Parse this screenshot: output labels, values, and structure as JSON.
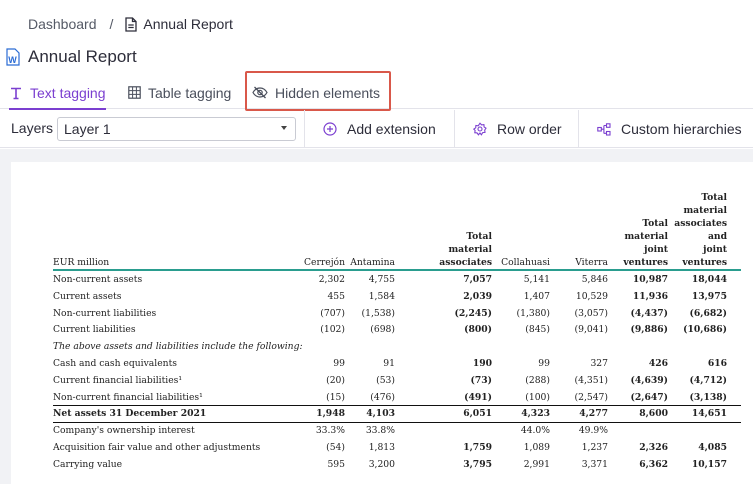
{
  "breadcrumb": {
    "root": "Dashboard",
    "separator": "/",
    "current": "Annual Report"
  },
  "page_title": "Annual Report",
  "tabs": [
    {
      "label": "Text tagging",
      "icon": "text-t-icon",
      "active": true
    },
    {
      "label": "Table tagging",
      "icon": "table-grid-icon",
      "active": false
    },
    {
      "label": "Hidden elements",
      "icon": "eye-slash-icon",
      "active": false
    }
  ],
  "toolbar": {
    "layers_label": "Layers",
    "layer_value": "Layer 1",
    "add_extension": "Add extension",
    "row_order": "Row order",
    "custom_hierarchies": "Custom hierarchies"
  },
  "colors": {
    "accent": "#7b3fd0",
    "highlight_box": "#d9584a",
    "teal_rule": "#2a9d8f"
  },
  "table": {
    "unit_label": "EUR million",
    "columns": [
      {
        "label": "Cerrejón",
        "bold": false
      },
      {
        "label": "Antamina",
        "bold": false
      },
      {
        "label": "Total material associates",
        "lines": [
          "Total",
          "material",
          "associates"
        ],
        "bold": true
      },
      {
        "label": "Collahuasi",
        "bold": false
      },
      {
        "label": "Viterra",
        "bold": false
      },
      {
        "label": "Total material joint ventures",
        "lines": [
          "Total",
          "material",
          "joint",
          "ventures"
        ],
        "bold": true
      },
      {
        "label": "Total material associates and joint ventures",
        "lines": [
          "Total",
          "material",
          "associates",
          "and",
          "joint",
          "ventures"
        ],
        "bold": true
      }
    ],
    "rows": [
      {
        "label": "Non-current assets",
        "values": [
          "2,302",
          "4,755",
          "7,057",
          "5,141",
          "5,846",
          "10,987",
          "18,044"
        ]
      },
      {
        "label": "Current assets",
        "values": [
          "455",
          "1,584",
          "2,039",
          "1,407",
          "10,529",
          "11,936",
          "13,975"
        ]
      },
      {
        "label": "Non-current liabilities",
        "values": [
          "(707)",
          "(1,538)",
          "(2,245)",
          "(1,380)",
          "(3,057)",
          "(4,437)",
          "(6,682)"
        ]
      },
      {
        "label": "Current liabilities",
        "values": [
          "(102)",
          "(698)",
          "(800)",
          "(845)",
          "(9,041)",
          "(9,886)",
          "(10,686)"
        ]
      },
      {
        "label": "The above assets and liabilities include the following:",
        "italic": true,
        "values": []
      },
      {
        "label": "Cash and cash equivalents",
        "values": [
          "99",
          "91",
          "190",
          "99",
          "327",
          "426",
          "616"
        ]
      },
      {
        "label": "Current financial liabilities¹",
        "values": [
          "(20)",
          "(53)",
          "(73)",
          "(288)",
          "(4,351)",
          "(4,639)",
          "(4,712)"
        ]
      },
      {
        "label": "Non-current financial liabilities¹",
        "values": [
          "(15)",
          "(476)",
          "(491)",
          "(100)",
          "(2,547)",
          "(2,647)",
          "(3,138)"
        ]
      },
      {
        "label": "Net assets 31 December 2021",
        "bold": true,
        "rule": true,
        "values": [
          "1,948",
          "4,103",
          "6,051",
          "4,323",
          "4,277",
          "8,600",
          "14,651"
        ]
      },
      {
        "label": "Company's ownership interest",
        "rule": true,
        "values": [
          "33.3%",
          "33.8%",
          "",
          "44.0%",
          "49.9%",
          "",
          ""
        ]
      },
      {
        "label": "Acquisition fair value and other adjustments",
        "values": [
          "(54)",
          "1,813",
          "1,759",
          "1,089",
          "1,237",
          "2,326",
          "4,085"
        ]
      },
      {
        "label": "Carrying value",
        "values": [
          "595",
          "3,200",
          "3,795",
          "2,991",
          "3,371",
          "6,362",
          "10,157"
        ]
      }
    ]
  }
}
